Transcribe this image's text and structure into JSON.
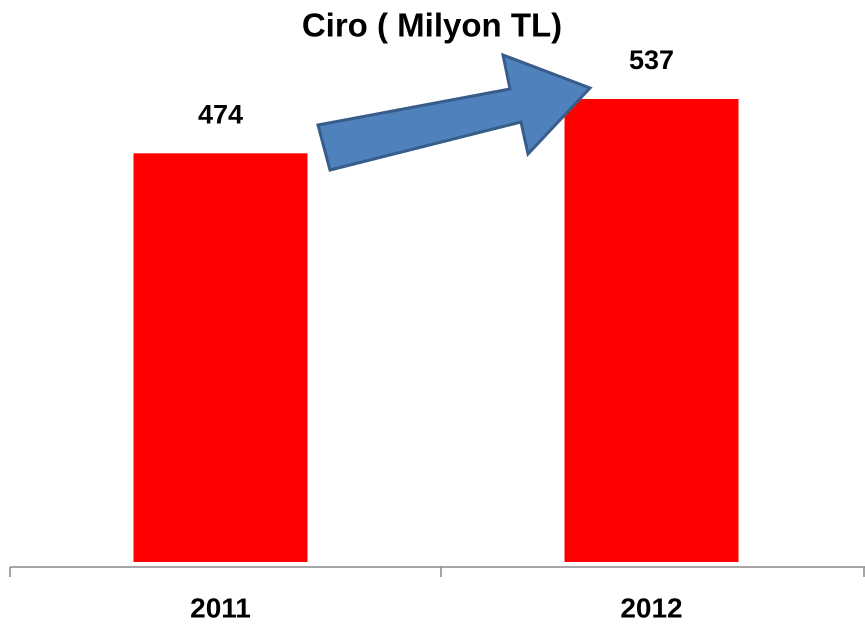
{
  "chart_data": {
    "type": "bar",
    "title": "Ciro ( Milyon TL)",
    "categories": [
      "2011",
      "2012"
    ],
    "values": [
      474,
      537
    ],
    "color": "#ff0000"
  }
}
